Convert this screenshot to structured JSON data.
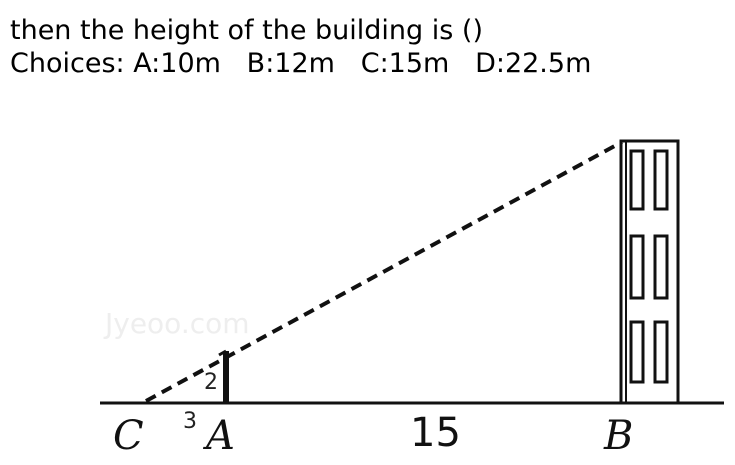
{
  "question": {
    "line1": "then the height of the building is ()",
    "line2": "Choices: A:10m   B:12m   C:15m   D:22.5m"
  },
  "diagram": {
    "points": {
      "C": "C",
      "A": "A",
      "B": "B"
    },
    "measures": {
      "pole_height": "2",
      "ca_distance": "3",
      "ab_distance": "15"
    },
    "watermark": "Jyeoo.com",
    "colors": {
      "ink": "#111111",
      "watermark": "#eeeeee"
    }
  }
}
